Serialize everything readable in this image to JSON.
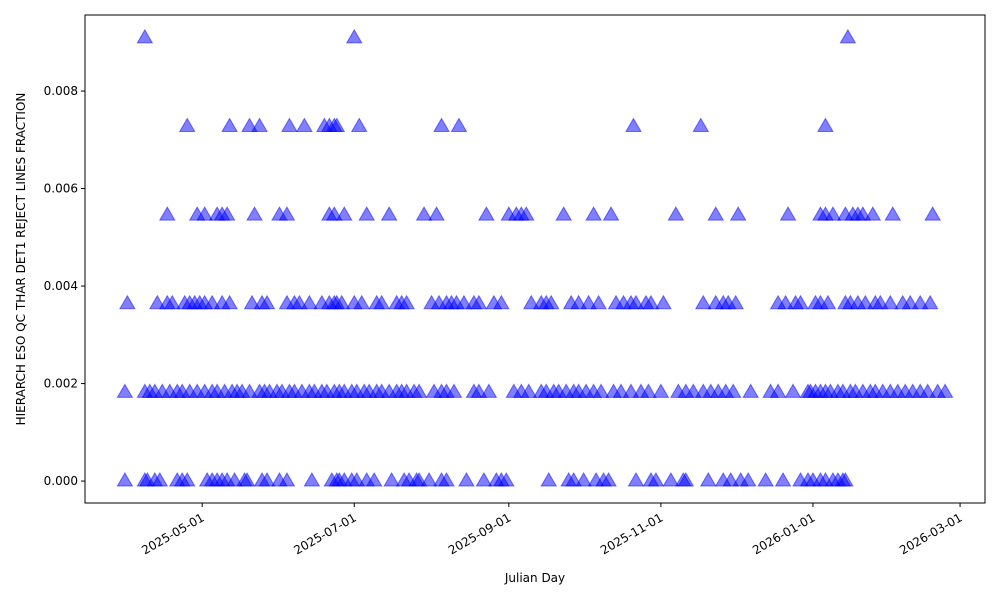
{
  "chart_data": {
    "type": "scatter",
    "title": "",
    "xlabel": "Julian Day",
    "ylabel": "HIERARCH ESO QC THAR DET1 REJECT LINES FRACTION",
    "xlim": [
      "2025-03-15",
      "2026-03-11"
    ],
    "ylim": [
      -0.00045,
      0.00956
    ],
    "x_ticks": [
      "2025-05-01",
      "2025-07-01",
      "2025-09-01",
      "2025-11-01",
      "2026-01-01",
      "2026-03-01"
    ],
    "y_ticks": [
      "0.000",
      "0.002",
      "0.004",
      "0.006",
      "0.008"
    ],
    "grid": false,
    "marker": "triangle-up",
    "marker_color": "#0000ff",
    "marker_alpha": 0.5,
    "points_by_level": [
      {
        "y": 0.009091,
        "x": [
          "2025-04-08",
          "2025-07-01",
          "2026-01-15"
        ]
      },
      {
        "y": 0.007273,
        "x": [
          "2025-04-25",
          "2025-05-12",
          "2025-05-20",
          "2025-05-24",
          "2025-06-05",
          "2025-06-11",
          "2025-06-19",
          "2025-06-21",
          "2025-06-23",
          "2025-06-24",
          "2025-07-03",
          "2025-08-05",
          "2025-08-12",
          "2025-10-21",
          "2025-11-17",
          "2026-01-06"
        ]
      },
      {
        "y": 0.005455,
        "x": [
          "2025-04-17",
          "2025-04-29",
          "2025-05-02",
          "2025-05-07",
          "2025-05-09",
          "2025-05-11",
          "2025-05-22",
          "2025-06-01",
          "2025-06-04",
          "2025-06-21",
          "2025-06-23",
          "2025-06-27",
          "2025-07-06",
          "2025-07-15",
          "2025-07-29",
          "2025-08-03",
          "2025-08-23",
          "2025-09-01",
          "2025-09-04",
          "2025-09-06",
          "2025-09-08",
          "2025-09-23",
          "2025-10-05",
          "2025-10-12",
          "2025-11-07",
          "2025-11-23",
          "2025-12-02",
          "2025-12-22",
          "2026-01-04",
          "2026-01-06",
          "2026-01-09",
          "2026-01-14",
          "2026-01-17",
          "2026-01-19",
          "2026-01-21",
          "2026-01-25",
          "2026-02-02",
          "2026-02-18"
        ]
      },
      {
        "y": 0.003636,
        "x": [
          "2025-04-01",
          "2025-04-13",
          "2025-04-17",
          "2025-04-19",
          "2025-04-24",
          "2025-04-26",
          "2025-04-28",
          "2025-04-30",
          "2025-05-02",
          "2025-05-05",
          "2025-05-09",
          "2025-05-12",
          "2025-05-21",
          "2025-05-25",
          "2025-05-27",
          "2025-06-04",
          "2025-06-07",
          "2025-06-09",
          "2025-06-13",
          "2025-06-18",
          "2025-06-21",
          "2025-06-23",
          "2025-06-24",
          "2025-06-26",
          "2025-07-01",
          "2025-07-04",
          "2025-07-10",
          "2025-07-12",
          "2025-07-18",
          "2025-07-20",
          "2025-07-22",
          "2025-08-01",
          "2025-08-04",
          "2025-08-07",
          "2025-08-09",
          "2025-08-11",
          "2025-08-14",
          "2025-08-18",
          "2025-08-20",
          "2025-08-26",
          "2025-08-29",
          "2025-09-10",
          "2025-09-14",
          "2025-09-16",
          "2025-09-18",
          "2025-09-26",
          "2025-09-29",
          "2025-10-03",
          "2025-10-07",
          "2025-10-14",
          "2025-10-17",
          "2025-10-20",
          "2025-10-22",
          "2025-10-26",
          "2025-10-28",
          "2025-11-02",
          "2025-11-18",
          "2025-11-23",
          "2025-11-26",
          "2025-11-28",
          "2025-12-01",
          "2025-12-18",
          "2025-12-21",
          "2025-12-25",
          "2025-12-27",
          "2026-01-02",
          "2026-01-04",
          "2026-01-07",
          "2026-01-14",
          "2026-01-16",
          "2026-01-19",
          "2026-01-22",
          "2026-01-26",
          "2026-01-28",
          "2026-02-01",
          "2026-02-06",
          "2026-02-09",
          "2026-02-13",
          "2026-02-17"
        ]
      },
      {
        "y": 0.001818,
        "x": [
          "2025-03-31",
          "2025-04-08",
          "2025-04-10",
          "2025-04-12",
          "2025-04-15",
          "2025-04-18",
          "2025-04-21",
          "2025-04-23",
          "2025-04-26",
          "2025-04-29",
          "2025-05-02",
          "2025-05-05",
          "2025-05-07",
          "2025-05-10",
          "2025-05-13",
          "2025-05-15",
          "2025-05-17",
          "2025-05-20",
          "2025-05-24",
          "2025-05-26",
          "2025-05-28",
          "2025-05-31",
          "2025-06-02",
          "2025-06-05",
          "2025-06-07",
          "2025-06-10",
          "2025-06-13",
          "2025-06-15",
          "2025-06-18",
          "2025-06-20",
          "2025-06-23",
          "2025-06-25",
          "2025-06-27",
          "2025-06-30",
          "2025-07-02",
          "2025-07-05",
          "2025-07-07",
          "2025-07-10",
          "2025-07-12",
          "2025-07-15",
          "2025-07-18",
          "2025-07-20",
          "2025-07-22",
          "2025-07-25",
          "2025-07-27",
          "2025-08-02",
          "2025-08-05",
          "2025-08-07",
          "2025-08-10",
          "2025-08-18",
          "2025-08-20",
          "2025-08-24",
          "2025-09-03",
          "2025-09-06",
          "2025-09-09",
          "2025-09-14",
          "2025-09-16",
          "2025-09-19",
          "2025-09-21",
          "2025-09-24",
          "2025-09-27",
          "2025-09-29",
          "2025-10-02",
          "2025-10-05",
          "2025-10-08",
          "2025-10-13",
          "2025-10-16",
          "2025-10-20",
          "2025-10-24",
          "2025-10-27",
          "2025-11-01",
          "2025-11-08",
          "2025-11-11",
          "2025-11-14",
          "2025-11-18",
          "2025-11-21",
          "2025-11-24",
          "2025-11-27",
          "2025-11-30",
          "2025-12-07",
          "2025-12-15",
          "2025-12-18",
          "2025-12-24",
          "2025-12-30",
          "2025-12-31",
          "2026-01-02",
          "2026-01-04",
          "2026-01-06",
          "2026-01-08",
          "2026-01-11",
          "2026-01-13",
          "2026-01-16",
          "2026-01-18",
          "2026-01-21",
          "2026-01-24",
          "2026-01-26",
          "2026-01-29",
          "2026-02-01",
          "2026-02-04",
          "2026-02-07",
          "2026-02-10",
          "2026-02-13",
          "2026-02-16",
          "2026-02-20",
          "2026-02-23"
        ]
      },
      {
        "y": 0.0,
        "x": [
          "2025-03-31",
          "2025-04-08",
          "2025-04-09",
          "2025-04-12",
          "2025-04-14",
          "2025-04-21",
          "2025-04-23",
          "2025-04-25",
          "2025-05-03",
          "2025-05-05",
          "2025-05-07",
          "2025-05-09",
          "2025-05-11",
          "2025-05-14",
          "2025-05-18",
          "2025-05-19",
          "2025-05-25",
          "2025-05-27",
          "2025-06-01",
          "2025-06-04",
          "2025-06-14",
          "2025-06-22",
          "2025-06-24",
          "2025-06-25",
          "2025-06-27",
          "2025-06-30",
          "2025-07-02",
          "2025-07-06",
          "2025-07-09",
          "2025-07-16",
          "2025-07-21",
          "2025-07-23",
          "2025-07-26",
          "2025-07-27",
          "2025-07-31",
          "2025-08-05",
          "2025-08-07",
          "2025-08-15",
          "2025-08-22",
          "2025-08-27",
          "2025-08-29",
          "2025-08-31",
          "2025-09-17",
          "2025-09-25",
          "2025-09-27",
          "2025-10-01",
          "2025-10-06",
          "2025-10-09",
          "2025-10-11",
          "2025-10-22",
          "2025-10-28",
          "2025-10-30",
          "2025-11-05",
          "2025-11-10",
          "2025-11-11",
          "2025-11-20",
          "2025-11-26",
          "2025-11-29",
          "2025-12-03",
          "2025-12-06",
          "2025-12-13",
          "2025-12-20",
          "2025-12-27",
          "2025-12-30",
          "2026-01-01",
          "2026-01-04",
          "2026-01-06",
          "2026-01-09",
          "2026-01-11",
          "2026-01-13",
          "2026-01-14"
        ]
      }
    ]
  }
}
